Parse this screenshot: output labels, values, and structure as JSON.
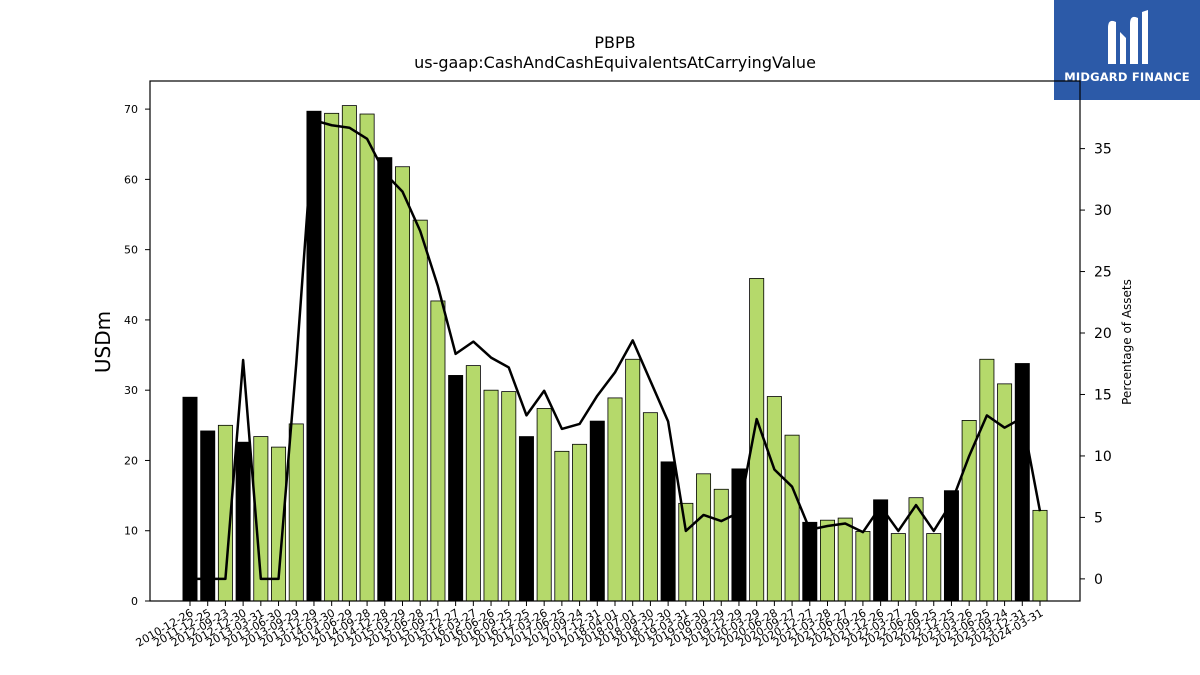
{
  "chart_data": {
    "type": "bar",
    "title": "PBPB",
    "subtitle": "us-gaap:CashAndCashEquivalentsAtCarryingValue",
    "ylabel": "USDm",
    "y2label": "Percentage of Assets",
    "ylim": [
      0,
      74
    ],
    "y2lim": [
      -1.8,
      40.5
    ],
    "yticks": [
      0,
      10,
      20,
      30,
      40,
      50,
      60,
      70
    ],
    "y2ticks": [
      0,
      5,
      10,
      15,
      20,
      25,
      30,
      35
    ],
    "grid": false,
    "colors": {
      "annual": "#000000",
      "quarterly": "#b5d96b",
      "line": "#000000"
    },
    "categories": [
      "2010-12-26",
      "2011-12-25",
      "2012-09-23",
      "2012-12-30",
      "2013-03-31",
      "2013-06-30",
      "2013-09-29",
      "2013-12-29",
      "2014-03-30",
      "2014-06-29",
      "2014-09-28",
      "2014-12-28",
      "2015-03-29",
      "2015-06-28",
      "2015-09-27",
      "2015-12-27",
      "2016-03-27",
      "2016-06-26",
      "2016-09-25",
      "2016-12-25",
      "2017-03-26",
      "2017-06-25",
      "2017-09-24",
      "2017-12-31",
      "2018-04-01",
      "2018-07-01",
      "2018-09-30",
      "2018-12-30",
      "2019-03-31",
      "2019-06-30",
      "2019-09-29",
      "2019-12-29",
      "2020-03-29",
      "2020-06-28",
      "2020-09-27",
      "2020-12-27",
      "2021-03-28",
      "2021-06-27",
      "2021-09-26",
      "2021-12-26",
      "2022-03-27",
      "2022-06-26",
      "2022-09-25",
      "2022-12-25",
      "2023-03-26",
      "2023-06-25",
      "2023-09-24",
      "2023-12-31",
      "2024-03-31"
    ],
    "values": [
      29.0,
      24.2,
      25.0,
      22.6,
      23.4,
      21.9,
      25.2,
      69.7,
      69.4,
      70.5,
      69.3,
      63.1,
      61.8,
      54.2,
      42.7,
      32.1,
      33.5,
      30.0,
      29.8,
      23.4,
      27.4,
      21.3,
      22.3,
      25.6,
      28.9,
      34.4,
      26.8,
      19.8,
      13.9,
      18.1,
      15.9,
      18.8,
      45.9,
      29.1,
      23.6,
      11.2,
      11.5,
      11.8,
      9.9,
      14.4,
      9.6,
      14.7,
      9.6,
      15.7,
      25.7,
      34.4,
      30.9,
      33.8,
      12.9
    ],
    "bar_kind": [
      "annual",
      "annual",
      "quarterly",
      "annual",
      "quarterly",
      "quarterly",
      "quarterly",
      "annual",
      "quarterly",
      "quarterly",
      "quarterly",
      "annual",
      "quarterly",
      "quarterly",
      "quarterly",
      "annual",
      "quarterly",
      "quarterly",
      "quarterly",
      "annual",
      "quarterly",
      "quarterly",
      "quarterly",
      "annual",
      "quarterly",
      "quarterly",
      "quarterly",
      "annual",
      "quarterly",
      "quarterly",
      "quarterly",
      "annual",
      "quarterly",
      "quarterly",
      "quarterly",
      "annual",
      "quarterly",
      "quarterly",
      "quarterly",
      "annual",
      "quarterly",
      "quarterly",
      "quarterly",
      "annual",
      "quarterly",
      "quarterly",
      "quarterly",
      "annual",
      "quarterly"
    ],
    "pct_of_assets": [
      0.0,
      0.0,
      0.0,
      17.8,
      0.0,
      0.0,
      17.5,
      37.3,
      36.9,
      36.7,
      35.8,
      33.0,
      31.5,
      28.3,
      23.8,
      18.3,
      19.3,
      18.0,
      17.2,
      13.3,
      15.3,
      12.2,
      12.6,
      14.9,
      16.8,
      19.4,
      16.1,
      12.8,
      3.9,
      5.2,
      4.7,
      5.4,
      13.0,
      8.9,
      7.5,
      4.0,
      4.3,
      4.5,
      3.8,
      5.9,
      3.9,
      6.0,
      3.9,
      6.2,
      10.0,
      13.3,
      12.3,
      13.1,
      5.5
    ]
  },
  "logo": {
    "text": "MIDGARD FINANCE",
    "color": "#2c5aa8"
  }
}
